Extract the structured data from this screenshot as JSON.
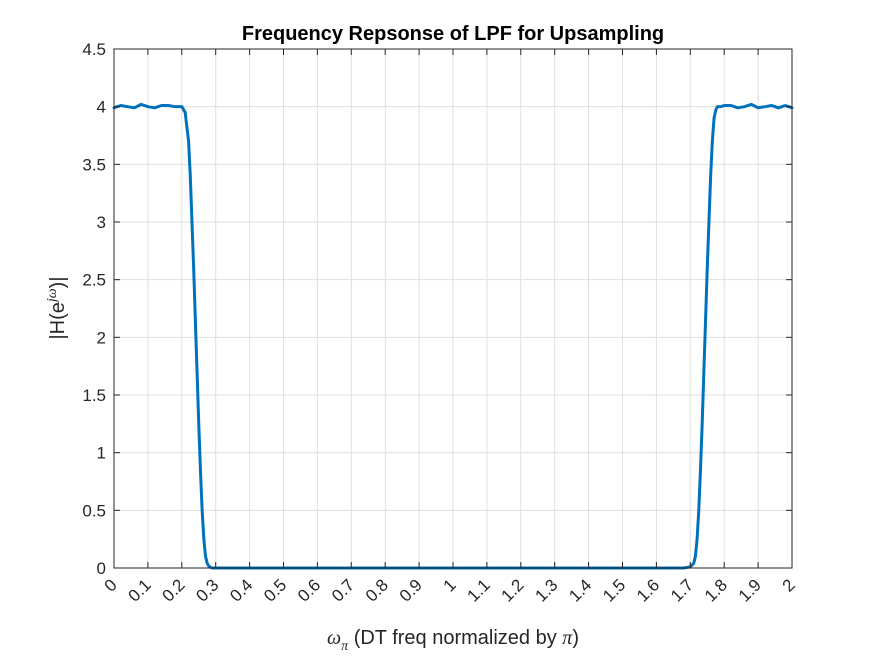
{
  "chart_data": {
    "type": "line",
    "title": "Frequency Repsonse of LPF for Upsampling",
    "xlabel": {
      "omega_symbol": "ω",
      "omega_subscript": "π",
      "text": " (DT freq normalized by ",
      "pi_symbol": "π",
      "close": ")"
    },
    "ylabel": {
      "prefix": "|H(e",
      "superscript": "jω",
      "suffix": ")|"
    },
    "xlim": [
      0,
      2
    ],
    "ylim": [
      0,
      4.5
    ],
    "x_ticks": [
      "0",
      "0.1",
      "0.2",
      "0.3",
      "0.4",
      "0.5",
      "0.6",
      "0.7",
      "0.8",
      "0.9",
      "1",
      "1.1",
      "1.2",
      "1.3",
      "1.4",
      "1.5",
      "1.6",
      "1.7",
      "1.8",
      "1.9",
      "2"
    ],
    "y_ticks": [
      "0",
      "0.5",
      "1",
      "1.5",
      "2",
      "2.5",
      "3",
      "3.5",
      "4",
      "4.5"
    ],
    "grid": true,
    "series": [
      {
        "color": "#0072BD",
        "x": [
          0,
          0.02,
          0.04,
          0.06,
          0.08,
          0.1,
          0.12,
          0.14,
          0.16,
          0.18,
          0.2,
          0.21,
          0.22,
          0.225,
          0.23,
          0.235,
          0.24,
          0.245,
          0.25,
          0.255,
          0.26,
          0.265,
          0.27,
          0.275,
          0.28,
          0.285,
          0.29,
          0.3,
          0.32,
          0.4,
          0.5,
          0.6,
          0.7,
          0.8,
          0.9,
          1.0,
          1.1,
          1.2,
          1.3,
          1.4,
          1.5,
          1.6,
          1.68,
          1.7,
          1.71,
          1.715,
          1.72,
          1.725,
          1.73,
          1.735,
          1.74,
          1.745,
          1.75,
          1.755,
          1.76,
          1.765,
          1.77,
          1.775,
          1.78,
          1.79,
          1.8,
          1.82,
          1.84,
          1.86,
          1.88,
          1.9,
          1.92,
          1.94,
          1.96,
          1.98,
          2.0
        ],
        "y": [
          3.99,
          4.01,
          4.0,
          3.99,
          4.02,
          4.0,
          3.99,
          4.01,
          4.01,
          4.0,
          4.0,
          3.95,
          3.7,
          3.4,
          3.0,
          2.6,
          2.15,
          1.7,
          1.25,
          0.85,
          0.5,
          0.25,
          0.1,
          0.04,
          0.015,
          0.005,
          0.0,
          0.0,
          0.0,
          0.0,
          0.0,
          0.0,
          0.0,
          0.0,
          0.0,
          0.0,
          0.0,
          0.0,
          0.0,
          0.0,
          0.0,
          0.0,
          0.0,
          0.01,
          0.04,
          0.1,
          0.25,
          0.5,
          0.85,
          1.25,
          1.7,
          2.15,
          2.6,
          3.0,
          3.4,
          3.7,
          3.9,
          3.97,
          4.0,
          4.0,
          4.01,
          4.01,
          3.99,
          4.0,
          4.02,
          3.99,
          4.0,
          4.01,
          3.99,
          4.01,
          3.99
        ]
      }
    ]
  }
}
